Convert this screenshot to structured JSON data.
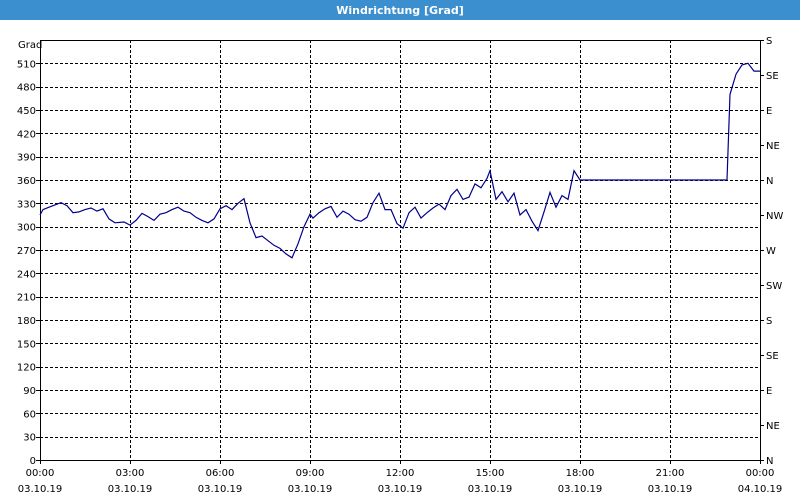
{
  "window": {
    "title": "Windrichtung [Grad]"
  },
  "colors": {
    "title_bar": "#3c8fcf",
    "series": "#00008b"
  },
  "chart_data": {
    "type": "line",
    "title": "Windrichtung [Grad]",
    "ylabel": "Grad",
    "ylim": [
      0,
      540
    ],
    "xlim_hours": [
      0,
      24
    ],
    "grid": true,
    "y_ticks": [
      0,
      30,
      60,
      90,
      120,
      150,
      180,
      210,
      240,
      270,
      300,
      330,
      360,
      390,
      420,
      450,
      480,
      510
    ],
    "right_ticks": [
      {
        "value": 0,
        "label": "N"
      },
      {
        "value": 45,
        "label": "NE"
      },
      {
        "value": 90,
        "label": "E"
      },
      {
        "value": 135,
        "label": "SE"
      },
      {
        "value": 180,
        "label": "S"
      },
      {
        "value": 225,
        "label": "SW"
      },
      {
        "value": 270,
        "label": "W"
      },
      {
        "value": 315,
        "label": "NW"
      },
      {
        "value": 360,
        "label": "N"
      },
      {
        "value": 405,
        "label": "NE"
      },
      {
        "value": 450,
        "label": "E"
      },
      {
        "value": 495,
        "label": "SE"
      },
      {
        "value": 540,
        "label": "S"
      }
    ],
    "x_ticks": [
      {
        "hour": 0,
        "time": "00:00",
        "date": "03.10.19"
      },
      {
        "hour": 3,
        "time": "03:00",
        "date": "03.10.19"
      },
      {
        "hour": 6,
        "time": "06:00",
        "date": "03.10.19"
      },
      {
        "hour": 9,
        "time": "09:00",
        "date": "03.10.19"
      },
      {
        "hour": 12,
        "time": "12:00",
        "date": "03.10.19"
      },
      {
        "hour": 15,
        "time": "15:00",
        "date": "03.10.19"
      },
      {
        "hour": 18,
        "time": "18:00",
        "date": "03.10.19"
      },
      {
        "hour": 21,
        "time": "21:00",
        "date": "03.10.19"
      },
      {
        "hour": 24,
        "time": "00:00",
        "date": "04.10.19"
      }
    ],
    "series": [
      {
        "x_hours": [
          0,
          0.1,
          0.3,
          0.5,
          0.7,
          0.9,
          1.1,
          1.3,
          1.5,
          1.7,
          1.9,
          2.1,
          2.3,
          2.5,
          2.8,
          3.0,
          3.2,
          3.4,
          3.6,
          3.8,
          4.0,
          4.2,
          4.4,
          4.6,
          4.8,
          5.0,
          5.2,
          5.4,
          5.6,
          5.8,
          6.0,
          6.2,
          6.4,
          6.6,
          6.8,
          7.0,
          7.2,
          7.4,
          7.6,
          7.8,
          8.0,
          8.2,
          8.4,
          8.6,
          8.8,
          9.0,
          9.1,
          9.3,
          9.5,
          9.7,
          9.9,
          10.1,
          10.3,
          10.5,
          10.7,
          10.9,
          11.1,
          11.3,
          11.5,
          11.7,
          11.9,
          12.1,
          12.3,
          12.5,
          12.7,
          12.9,
          13.1,
          13.3,
          13.5,
          13.7,
          13.9,
          14.1,
          14.3,
          14.5,
          14.7,
          14.9,
          15.0,
          15.2,
          15.4,
          15.6,
          15.8,
          16.0,
          16.2,
          16.4,
          16.6,
          16.8,
          17.0,
          17.2,
          17.4,
          17.6,
          17.8,
          18.0,
          19.0,
          20.0,
          21.0,
          22.0,
          22.9,
          23.0,
          23.2,
          23.4,
          23.6,
          23.8,
          24.0
        ],
        "values": [
          315,
          322,
          325,
          328,
          331,
          327,
          318,
          319,
          322,
          324,
          320,
          323,
          310,
          305,
          306,
          302,
          308,
          317,
          313,
          308,
          316,
          318,
          322,
          325,
          320,
          318,
          312,
          308,
          305,
          310,
          323,
          327,
          322,
          330,
          336,
          305,
          286,
          288,
          282,
          276,
          272,
          265,
          260,
          278,
          300,
          316,
          311,
          318,
          323,
          326,
          312,
          320,
          316,
          309,
          307,
          312,
          331,
          343,
          322,
          322,
          304,
          298,
          318,
          325,
          311,
          318,
          324,
          329,
          322,
          340,
          348,
          335,
          338,
          355,
          350,
          362,
          372,
          335,
          345,
          332,
          343,
          315,
          322,
          307,
          295,
          319,
          344,
          325,
          340,
          335,
          372,
          360,
          360,
          360,
          360,
          360,
          360,
          470,
          496,
          508,
          510,
          500,
          500
        ]
      }
    ]
  }
}
